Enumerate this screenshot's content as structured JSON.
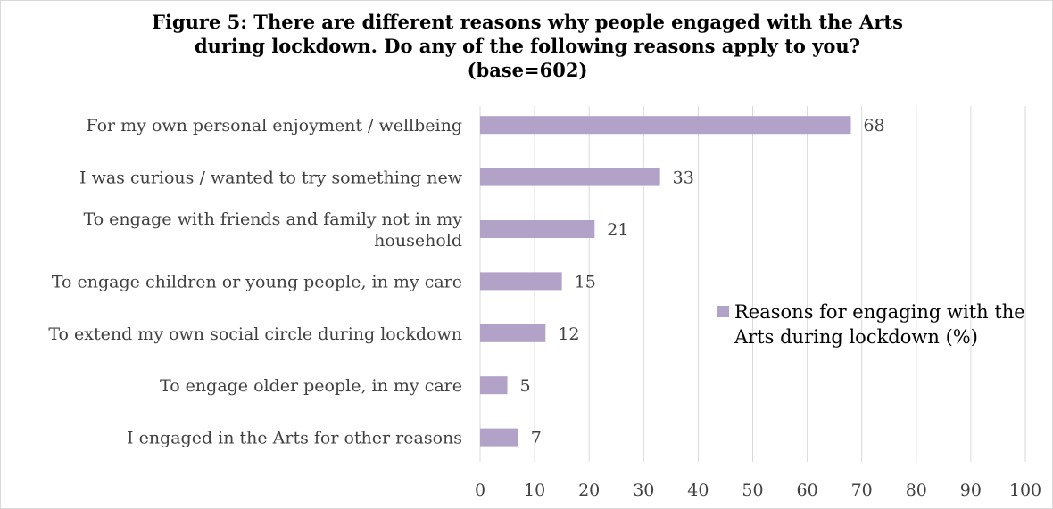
{
  "chart_data": {
    "type": "bar",
    "orientation": "horizontal",
    "title_lines": [
      "Figure 5: There are different reasons why people engaged with the Arts",
      "during lockdown.  Do any of the following reasons apply to you?",
      "(base=602)"
    ],
    "categories": [
      [
        "For my own personal enjoyment / wellbeing"
      ],
      [
        "I was curious / wanted to try something new"
      ],
      [
        "To engage with friends and family not in my",
        "household"
      ],
      [
        "To engage children or young people, in my care"
      ],
      [
        "To extend my own social circle during lockdown"
      ],
      [
        "To engage older people, in my care"
      ],
      [
        "I engaged in the Arts for other reasons"
      ]
    ],
    "series": [
      {
        "name_lines": [
          "Reasons for engaging with the",
          "Arts during lockdown (%)"
        ],
        "values": [
          68,
          33,
          21,
          15,
          12,
          5,
          7
        ],
        "color": "#b3a2c7"
      }
    ],
    "xlim": [
      0,
      100
    ],
    "x_ticks": [
      0,
      10,
      20,
      30,
      40,
      50,
      60,
      70,
      80,
      90,
      100
    ],
    "grid": "vertical",
    "legend_position": "right",
    "colors": {
      "gridline": "#d9d9d9",
      "text": "#404040"
    }
  }
}
